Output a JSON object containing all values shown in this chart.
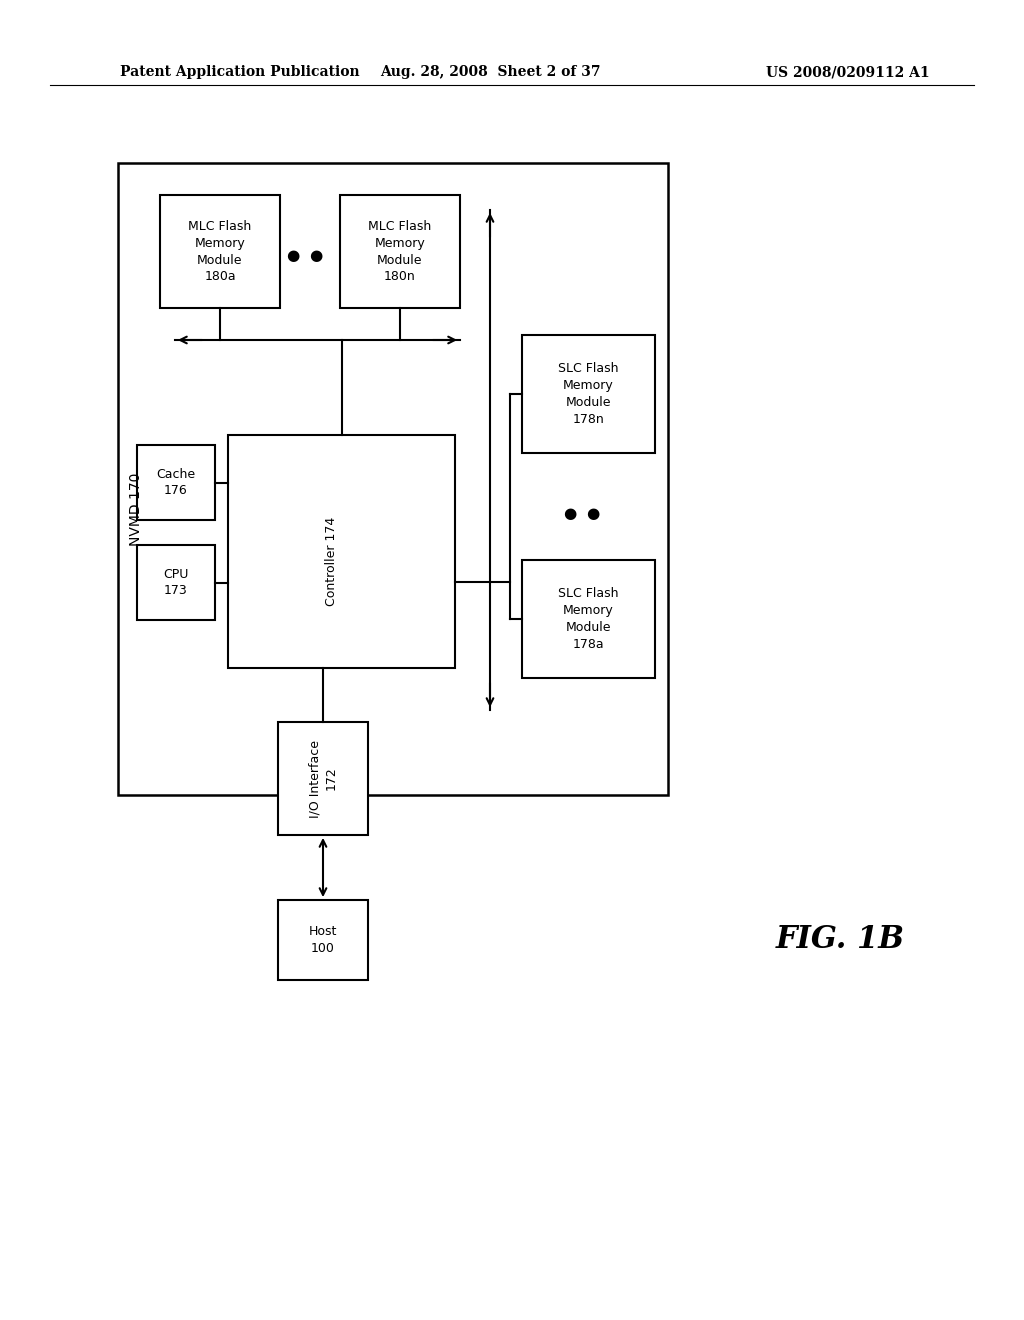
{
  "header_left": "Patent Application Publication",
  "header_mid": "Aug. 28, 2008  Sheet 2 of 37",
  "header_right": "US 2008/0209112 A1",
  "fig_label": "FIG. 1B",
  "background": "#ffffff",
  "line_color": "#000000"
}
